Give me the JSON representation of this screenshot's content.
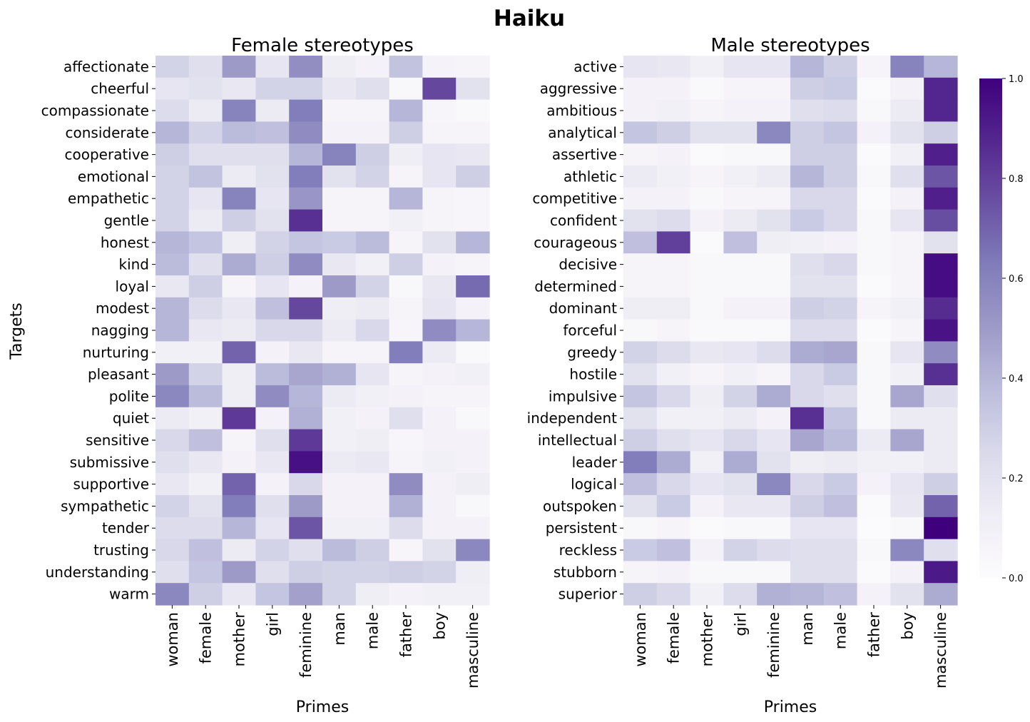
{
  "chart_data": {
    "type": "heatmap",
    "suptitle": "Haiku",
    "ylabel": "Targets",
    "colorbar": {
      "range": [
        0,
        1
      ],
      "ticks": [
        "0.0",
        "0.2",
        "0.4",
        "0.6",
        "0.8",
        "1.0"
      ],
      "colormap": "Purples",
      "stops": [
        "#fcfbfd",
        "#efedf5",
        "#dadaeb",
        "#bcbddc",
        "#9e9ac8",
        "#807dba",
        "#6a51a3",
        "#54278f",
        "#3f007d"
      ]
    },
    "panels": [
      {
        "title": "Female stereotypes",
        "xlabel": "Primes",
        "columns": [
          "woman",
          "female",
          "mother",
          "girl",
          "feminine",
          "man",
          "male",
          "father",
          "boy",
          "masculine"
        ],
        "rows": [
          "affectionate",
          "cheerful",
          "compassionate",
          "considerate",
          "cooperative",
          "emotional",
          "empathetic",
          "gentle",
          "honest",
          "kind",
          "loyal",
          "modest",
          "nagging",
          "nurturing",
          "pleasant",
          "polite",
          "quiet",
          "sensitive",
          "submissive",
          "supportive",
          "sympathetic",
          "tender",
          "trusting",
          "understanding",
          "warm"
        ],
        "values": [
          [
            0.28,
            0.22,
            0.5,
            0.18,
            0.55,
            0.12,
            0.08,
            0.35,
            0.07,
            0.06
          ],
          [
            0.18,
            0.2,
            0.16,
            0.28,
            0.28,
            0.16,
            0.22,
            0.04,
            0.78,
            0.2
          ],
          [
            0.24,
            0.14,
            0.6,
            0.14,
            0.62,
            0.06,
            0.06,
            0.4,
            0.05,
            0.03
          ],
          [
            0.4,
            0.28,
            0.38,
            0.36,
            0.56,
            0.08,
            0.08,
            0.3,
            0.06,
            0.06
          ],
          [
            0.3,
            0.22,
            0.22,
            0.22,
            0.4,
            0.6,
            0.3,
            0.12,
            0.18,
            0.16
          ],
          [
            0.28,
            0.35,
            0.14,
            0.2,
            0.62,
            0.2,
            0.28,
            0.06,
            0.18,
            0.3
          ],
          [
            0.28,
            0.18,
            0.6,
            0.18,
            0.52,
            0.06,
            0.06,
            0.4,
            0.06,
            0.05
          ],
          [
            0.28,
            0.14,
            0.3,
            0.2,
            0.85,
            0.06,
            0.06,
            0.1,
            0.06,
            0.05
          ],
          [
            0.4,
            0.34,
            0.12,
            0.28,
            0.34,
            0.32,
            0.38,
            0.06,
            0.2,
            0.4
          ],
          [
            0.38,
            0.22,
            0.44,
            0.3,
            0.56,
            0.16,
            0.1,
            0.3,
            0.08,
            0.06
          ],
          [
            0.16,
            0.3,
            0.06,
            0.18,
            0.08,
            0.5,
            0.28,
            0.04,
            0.16,
            0.68
          ],
          [
            0.4,
            0.24,
            0.16,
            0.36,
            0.78,
            0.12,
            0.14,
            0.06,
            0.18,
            0.08
          ],
          [
            0.4,
            0.16,
            0.14,
            0.26,
            0.26,
            0.14,
            0.26,
            0.05,
            0.56,
            0.4
          ],
          [
            0.1,
            0.1,
            0.7,
            0.08,
            0.16,
            0.06,
            0.06,
            0.62,
            0.14,
            0.03
          ],
          [
            0.5,
            0.28,
            0.12,
            0.38,
            0.46,
            0.42,
            0.18,
            0.06,
            0.08,
            0.1
          ],
          [
            0.58,
            0.38,
            0.12,
            0.56,
            0.4,
            0.14,
            0.1,
            0.08,
            0.06,
            0.06
          ],
          [
            0.14,
            0.1,
            0.82,
            0.08,
            0.42,
            0.1,
            0.08,
            0.22,
            0.08,
            0.04
          ],
          [
            0.26,
            0.36,
            0.06,
            0.22,
            0.82,
            0.1,
            0.12,
            0.05,
            0.08,
            0.08
          ],
          [
            0.22,
            0.16,
            0.08,
            0.16,
            0.95,
            0.14,
            0.16,
            0.06,
            0.1,
            0.08
          ],
          [
            0.16,
            0.1,
            0.7,
            0.08,
            0.26,
            0.08,
            0.08,
            0.56,
            0.08,
            0.12
          ],
          [
            0.28,
            0.2,
            0.62,
            0.22,
            0.5,
            0.08,
            0.08,
            0.42,
            0.08,
            0.04
          ],
          [
            0.24,
            0.24,
            0.4,
            0.18,
            0.74,
            0.1,
            0.1,
            0.24,
            0.08,
            0.08
          ],
          [
            0.26,
            0.36,
            0.14,
            0.28,
            0.22,
            0.38,
            0.3,
            0.05,
            0.2,
            0.58
          ],
          [
            0.22,
            0.34,
            0.5,
            0.22,
            0.3,
            0.28,
            0.28,
            0.3,
            0.28,
            0.12
          ],
          [
            0.58,
            0.3,
            0.16,
            0.34,
            0.48,
            0.28,
            0.12,
            0.08,
            0.1,
            0.1
          ]
        ]
      },
      {
        "title": "Male stereotypes",
        "xlabel": "Primes",
        "columns": [
          "woman",
          "female",
          "mother",
          "girl",
          "feminine",
          "man",
          "male",
          "father",
          "boy",
          "masculine"
        ],
        "rows": [
          "active",
          "aggressive",
          "ambitious",
          "analytical",
          "assertive",
          "athletic",
          "competitive",
          "confident",
          "courageous",
          "decisive",
          "determined",
          "dominant",
          "forceful",
          "greedy",
          "hostile",
          "impulsive",
          "independent",
          "intellectual",
          "leader",
          "logical",
          "outspoken",
          "persistent",
          "reckless",
          "stubborn",
          "superior"
        ],
        "values": [
          [
            0.18,
            0.16,
            0.1,
            0.18,
            0.18,
            0.4,
            0.3,
            0.06,
            0.6,
            0.4
          ],
          [
            0.08,
            0.08,
            0.03,
            0.06,
            0.06,
            0.3,
            0.32,
            0.02,
            0.08,
            0.88
          ],
          [
            0.08,
            0.1,
            0.06,
            0.08,
            0.08,
            0.22,
            0.24,
            0.04,
            0.14,
            0.88
          ],
          [
            0.34,
            0.3,
            0.2,
            0.2,
            0.58,
            0.3,
            0.34,
            0.08,
            0.2,
            0.3
          ],
          [
            0.06,
            0.08,
            0.02,
            0.04,
            0.04,
            0.3,
            0.3,
            0.02,
            0.1,
            0.9
          ],
          [
            0.14,
            0.1,
            0.06,
            0.1,
            0.14,
            0.4,
            0.3,
            0.04,
            0.22,
            0.74
          ],
          [
            0.08,
            0.08,
            0.04,
            0.06,
            0.06,
            0.26,
            0.26,
            0.02,
            0.08,
            0.9
          ],
          [
            0.2,
            0.24,
            0.08,
            0.14,
            0.2,
            0.32,
            0.26,
            0.04,
            0.18,
            0.76
          ],
          [
            0.36,
            0.8,
            0.02,
            0.36,
            0.12,
            0.1,
            0.08,
            0.04,
            0.06,
            0.2
          ],
          [
            0.06,
            0.06,
            0.04,
            0.04,
            0.04,
            0.22,
            0.26,
            0.04,
            0.06,
            0.96
          ],
          [
            0.06,
            0.06,
            0.04,
            0.04,
            0.04,
            0.2,
            0.2,
            0.02,
            0.06,
            0.96
          ],
          [
            0.12,
            0.12,
            0.04,
            0.08,
            0.08,
            0.3,
            0.28,
            0.06,
            0.1,
            0.86
          ],
          [
            0.04,
            0.06,
            0.03,
            0.03,
            0.03,
            0.24,
            0.24,
            0.02,
            0.06,
            0.94
          ],
          [
            0.28,
            0.24,
            0.16,
            0.18,
            0.24,
            0.44,
            0.46,
            0.04,
            0.18,
            0.56
          ],
          [
            0.2,
            0.1,
            0.06,
            0.1,
            0.06,
            0.26,
            0.32,
            0.04,
            0.1,
            0.85
          ],
          [
            0.34,
            0.26,
            0.12,
            0.28,
            0.44,
            0.26,
            0.22,
            0.04,
            0.46,
            0.22
          ],
          [
            0.2,
            0.1,
            0.1,
            0.14,
            0.08,
            0.85,
            0.34,
            0.04,
            0.14,
            0.14
          ],
          [
            0.3,
            0.22,
            0.18,
            0.26,
            0.18,
            0.46,
            0.38,
            0.14,
            0.46,
            0.14
          ],
          [
            0.62,
            0.44,
            0.1,
            0.44,
            0.2,
            0.12,
            0.14,
            0.1,
            0.1,
            0.14
          ],
          [
            0.36,
            0.26,
            0.18,
            0.2,
            0.58,
            0.26,
            0.32,
            0.08,
            0.18,
            0.3
          ],
          [
            0.2,
            0.32,
            0.08,
            0.16,
            0.16,
            0.3,
            0.36,
            0.02,
            0.16,
            0.7
          ],
          [
            0.04,
            0.06,
            0.02,
            0.04,
            0.04,
            0.18,
            0.18,
            0.01,
            0.04,
            1.0
          ],
          [
            0.32,
            0.36,
            0.08,
            0.28,
            0.24,
            0.22,
            0.22,
            0.04,
            0.58,
            0.22
          ],
          [
            0.06,
            0.08,
            0.04,
            0.04,
            0.04,
            0.22,
            0.22,
            0.02,
            0.08,
            0.92
          ],
          [
            0.3,
            0.26,
            0.1,
            0.24,
            0.42,
            0.4,
            0.36,
            0.08,
            0.2,
            0.44
          ]
        ]
      }
    ]
  }
}
